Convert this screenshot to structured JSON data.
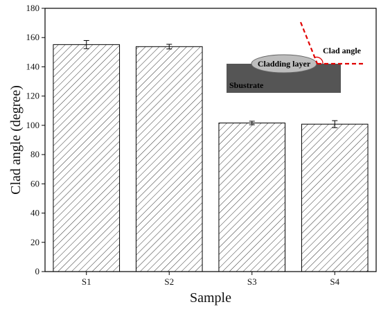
{
  "chart_data": {
    "type": "bar",
    "categories": [
      "S1",
      "S2",
      "S3",
      "S4"
    ],
    "values": [
      155.2,
      153.8,
      101.6,
      100.8
    ],
    "errors": [
      2.8,
      1.6,
      1.2,
      2.4
    ],
    "title": "",
    "xlabel": "Sample",
    "ylabel": "Clad angle (degree)",
    "ylim": [
      0,
      180
    ],
    "yticks": [
      0,
      20,
      40,
      60,
      80,
      100,
      120,
      140,
      160,
      180
    ],
    "grid": false,
    "bar_fill": "diagonal-hatch",
    "colors": {
      "bar_edge": "#000000",
      "hatch": "#333333",
      "substrate": "#555555",
      "cladding": "#bdbdbd",
      "angle_lines": "#e00000"
    },
    "inset": {
      "cladding_label": "Cladding layer",
      "substrate_label": "Sbustrate",
      "angle_label": "Clad angle"
    }
  }
}
